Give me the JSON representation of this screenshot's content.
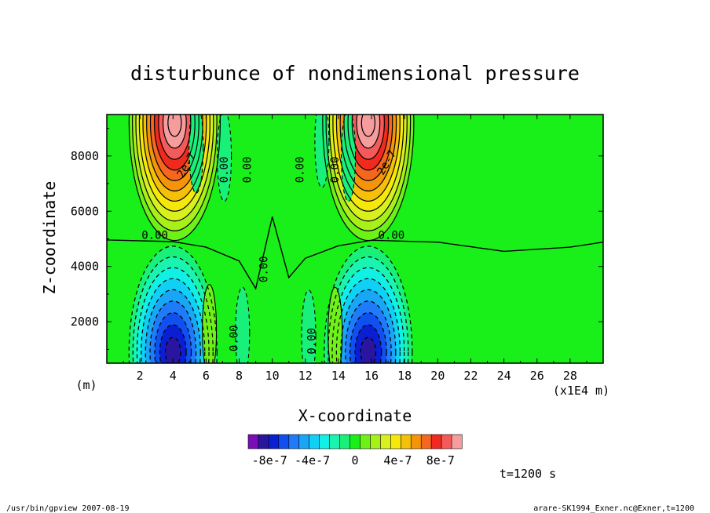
{
  "chart_data": {
    "type": "heatmap",
    "title": "disturbunce of nondimensional pressure",
    "xlabel": "X-coordinate",
    "ylabel": "Z-coordinate",
    "x_unit": "(m)",
    "x_scale_note": "(x1E4 m)",
    "xlim": [
      0,
      30
    ],
    "ylim": [
      500,
      9500
    ],
    "x_ticks": [
      "2",
      "4",
      "6",
      "8",
      "10",
      "12",
      "14",
      "16",
      "18",
      "20",
      "22",
      "24",
      "26",
      "28"
    ],
    "y_ticks": [
      "2000",
      "4000",
      "6000",
      "8000"
    ],
    "contour_labels": [
      "0.00",
      "0.00",
      "0.00",
      "0.00",
      "0.00",
      "0.00",
      "0.00",
      "0.00",
      "0.00",
      "2e-7",
      "2e-7"
    ],
    "features": [
      {
        "x": 4.1,
        "z": 9200,
        "sign": "positive",
        "peak": 1.1e-06
      },
      {
        "x": 15.8,
        "z": 9200,
        "sign": "positive",
        "peak": 1.1e-06
      },
      {
        "x": 4.0,
        "z": 900,
        "sign": "negative",
        "peak": -9e-07
      },
      {
        "x": 15.8,
        "z": 900,
        "sign": "negative",
        "peak": -9e-07
      }
    ],
    "colorbar": {
      "labels": [
        "-8e-7",
        "-4e-7",
        "0",
        "4e-7",
        "8e-7"
      ],
      "levels": [
        -1e-06,
        -9e-07,
        -8e-07,
        -7e-07,
        -6e-07,
        -5e-07,
        -4e-07,
        -3e-07,
        -2e-07,
        -1e-07,
        0,
        1e-07,
        2e-07,
        3e-07,
        4e-07,
        5e-07,
        6e-07,
        7e-07,
        8e-07,
        9e-07,
        1e-06
      ],
      "colors": [
        "#7b0db8",
        "#2a169e",
        "#0a1ed2",
        "#1050ee",
        "#1e7bfa",
        "#19a6f5",
        "#10d0f5",
        "#10f0e5",
        "#19f5b0",
        "#19f07a",
        "#19f019",
        "#6ef019",
        "#a8f019",
        "#d8f01e",
        "#f5e80a",
        "#f5c00a",
        "#f5940a",
        "#f5661e",
        "#f02a1e",
        "#f55a5a",
        "#f59c9c"
      ]
    },
    "time_label": "t=1200 s",
    "footer_left": "/usr/bin/gpview  2007-08-19",
    "footer_right": "arare-SK1994_Exner.nc@Exner,t=1200"
  }
}
